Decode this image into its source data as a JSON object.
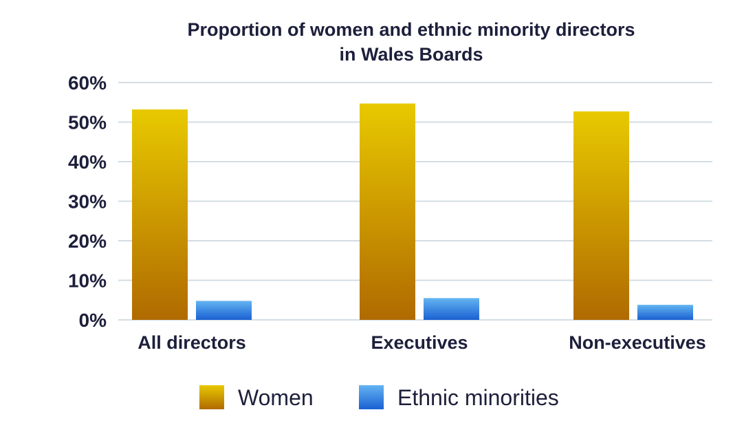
{
  "chart_data": {
    "type": "bar",
    "title": [
      "Proportion of women and ethnic minority directors",
      "in Wales Boards"
    ],
    "categories": [
      "All directors",
      "Executives",
      "Non-executives"
    ],
    "series": [
      {
        "name": "Women",
        "values": [
          53.2,
          54.7,
          52.7
        ],
        "color_top": "#e8c900",
        "color_bottom": "#b06a00"
      },
      {
        "name": "Ethnic minorities",
        "values": [
          4.8,
          5.5,
          3.8
        ],
        "color_top": "#63b4f2",
        "color_bottom": "#1a60d2"
      }
    ],
    "ylim": [
      0,
      60
    ],
    "yticks": [
      0,
      10,
      20,
      30,
      40,
      50,
      60
    ],
    "ytick_labels": [
      "0%",
      "10%",
      "20%",
      "30%",
      "40%",
      "50%",
      "60%"
    ],
    "xlabel": "",
    "ylabel": "",
    "grid": true,
    "legend_position": "bottom"
  }
}
